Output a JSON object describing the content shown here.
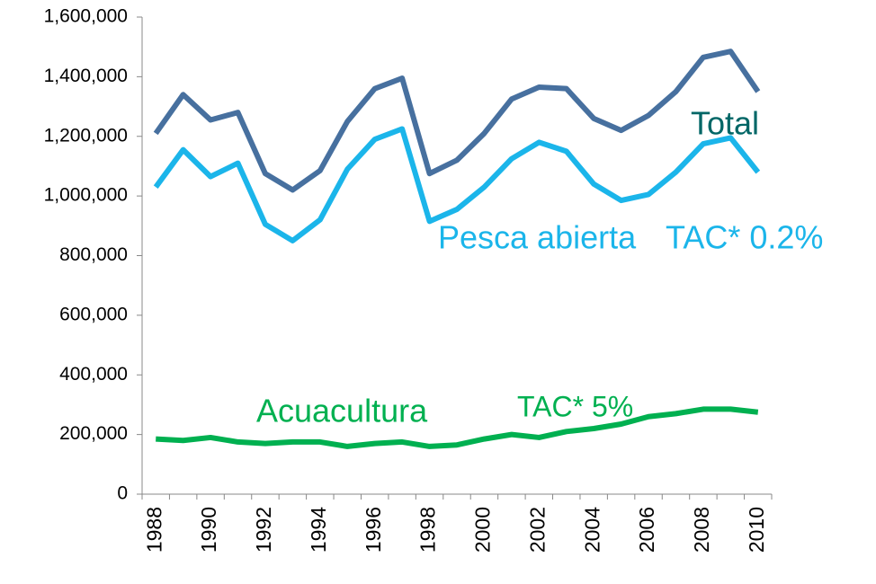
{
  "chart_data": {
    "type": "line",
    "categories": [
      "1988",
      null,
      "1990",
      null,
      "1992",
      null,
      "1994",
      null,
      "1996",
      null,
      "1998",
      null,
      "2000",
      null,
      "2002",
      null,
      "2004",
      null,
      "2006",
      null,
      "2008",
      null,
      "2010"
    ],
    "series": [
      {
        "name": "Total",
        "color": "#47709f",
        "label_color": "#006666",
        "values": [
          1210000,
          1340000,
          1255000,
          1280000,
          1075000,
          1020000,
          1085000,
          1250000,
          1360000,
          1395000,
          1075000,
          1120000,
          1210000,
          1325000,
          1365000,
          1360000,
          1260000,
          1220000,
          1270000,
          1350000,
          1465000,
          1485000,
          1350000
        ]
      },
      {
        "name": "Pesca abierta",
        "color": "#1bb5ea",
        "label_color": "#1bb5ea",
        "values": [
          1030000,
          1155000,
          1065000,
          1110000,
          905000,
          850000,
          920000,
          1090000,
          1190000,
          1225000,
          915000,
          955000,
          1030000,
          1125000,
          1180000,
          1150000,
          1040000,
          985000,
          1005000,
          1080000,
          1175000,
          1195000,
          1080000
        ]
      },
      {
        "name": "Acuacultura",
        "color": "#00b050",
        "label_color": "#00b050",
        "values": [
          185000,
          180000,
          190000,
          175000,
          170000,
          175000,
          175000,
          160000,
          170000,
          175000,
          160000,
          165000,
          185000,
          200000,
          190000,
          210000,
          220000,
          235000,
          260000,
          270000,
          285000,
          285000,
          275000
        ]
      }
    ],
    "annotations": [
      {
        "text": "TAC* 0.2%",
        "color": "#1bb5ea"
      },
      {
        "text": "TAC* 5%",
        "color": "#00b050"
      }
    ],
    "ylim": [
      0,
      1600000
    ],
    "yticks": [
      0,
      {
        "value": 200000,
        "label": "200,000"
      },
      {
        "value": 400000,
        "label": "400,000"
      },
      {
        "value": 600000,
        "label": "600,000"
      },
      {
        "value": 800000,
        "label": "800,000"
      },
      {
        "value": 1000000,
        "label": "1,000,000"
      },
      {
        "value": 1200000,
        "label": "1,200,000"
      },
      {
        "value": 1400000,
        "label": "1,400,000"
      },
      {
        "value": 1600000,
        "label": "1,600,000"
      }
    ],
    "grid": false
  }
}
